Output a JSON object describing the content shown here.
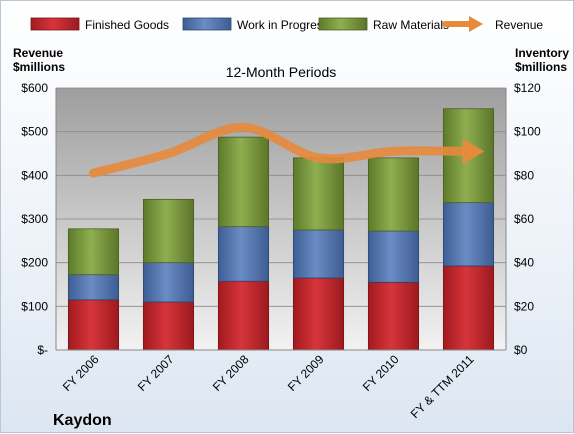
{
  "chart_data": {
    "type": "bar",
    "stacked": true,
    "title": "12-Month Periods",
    "company": "Kaydon",
    "categories": [
      "FY 2006",
      "FY 2007",
      "FY 2008",
      "FY 2009",
      "FY 2010",
      "FY & TTM 2011"
    ],
    "series": [
      {
        "name": "Finished Goods",
        "axis": "right",
        "color": "#c0272d",
        "values": [
          23,
          22,
          31.5,
          33,
          31,
          38.5
        ]
      },
      {
        "name": "Work in Progress",
        "axis": "right",
        "color": "#4f74b0",
        "values": [
          11.5,
          18,
          25,
          22,
          23.5,
          29
        ]
      },
      {
        "name": "Raw Materials",
        "axis": "right",
        "color": "#77953a",
        "values": [
          21,
          29,
          41,
          33,
          33.5,
          43
        ]
      },
      {
        "name": "Revenue",
        "axis": "left",
        "type": "line",
        "color": "#e78a3c",
        "values": [
          405,
          450,
          510,
          440,
          455,
          455
        ]
      }
    ],
    "left_axis": {
      "label_line1": "Revenue",
      "label_line2": "$millions",
      "min": 0,
      "max": 600,
      "ticks": [
        "$-",
        "$100",
        "$200",
        "$300",
        "$400",
        "$500",
        "$600"
      ]
    },
    "right_axis": {
      "label_line1": "Inventory",
      "label_line2": "$millions",
      "min": 0,
      "max": 120,
      "ticks": [
        "$0",
        "$20",
        "$40",
        "$60",
        "$80",
        "$100",
        "$120"
      ]
    },
    "legend_position": "top",
    "grid": true
  }
}
